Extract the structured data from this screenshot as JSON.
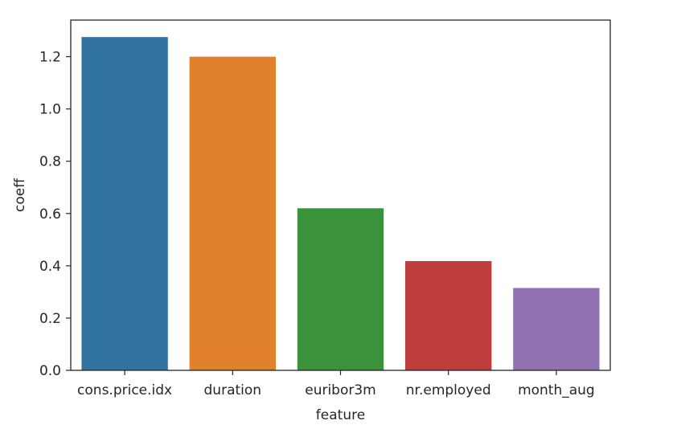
{
  "chart_data": {
    "type": "bar",
    "categories": [
      "cons.price.idx",
      "duration",
      "euribor3m",
      "nr.employed",
      "month_aug"
    ],
    "values": [
      1.275,
      1.2,
      0.62,
      0.418,
      0.315
    ],
    "colors": [
      "#3274a1",
      "#e1812c",
      "#3a923a",
      "#c03d3e",
      "#9372b2"
    ],
    "xlabel": "feature",
    "ylabel": "coeff",
    "ylim": [
      0,
      1.34
    ],
    "yticks": [
      0.0,
      0.2,
      0.4,
      0.6,
      0.8,
      1.0,
      1.2
    ],
    "ytick_labels": [
      "0.0",
      "0.2",
      "0.4",
      "0.6",
      "0.8",
      "1.0",
      "1.2"
    ],
    "grid": false,
    "legend": "none"
  }
}
